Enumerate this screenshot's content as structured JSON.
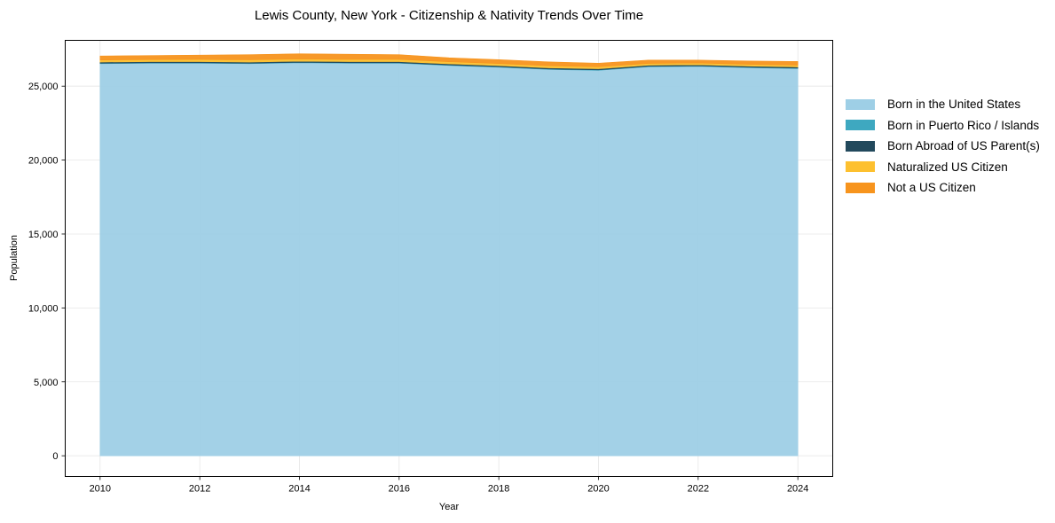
{
  "title": "Lewis County, New York - Citizenship & Nativity Trends Over Time",
  "chart_data": {
    "type": "area",
    "stacked": true,
    "title": "Lewis County, New York - Citizenship & Nativity Trends Over Time",
    "xlabel": "Year",
    "ylabel": "Population",
    "x": [
      2010,
      2011,
      2012,
      2013,
      2014,
      2015,
      2016,
      2017,
      2018,
      2019,
      2020,
      2021,
      2022,
      2023,
      2024
    ],
    "xticks": [
      "2010",
      "2012",
      "2014",
      "2016",
      "2018",
      "2020",
      "2022",
      "2024"
    ],
    "yticks": [
      "0",
      "5,000",
      "10,000",
      "15,000",
      "20,000",
      "25,000"
    ],
    "ylim": [
      -1400,
      28100
    ],
    "xlim": [
      2009.3,
      2024.7
    ],
    "grid": true,
    "legend_position": "right-outside",
    "series": [
      {
        "name": "Born in the United States",
        "color": "#9ecfe6",
        "values": [
          26520,
          26550,
          26550,
          26520,
          26580,
          26550,
          26550,
          26400,
          26280,
          26130,
          26070,
          26310,
          26340,
          26250,
          26190
        ]
      },
      {
        "name": "Born in Puerto Rico / Islands",
        "color": "#3ea8c0",
        "values": [
          30,
          30,
          30,
          30,
          30,
          30,
          30,
          30,
          30,
          30,
          30,
          30,
          30,
          30,
          30
        ]
      },
      {
        "name": "Born Abroad of US Parent(s)",
        "color": "#22495c",
        "values": [
          80,
          80,
          80,
          80,
          80,
          80,
          80,
          80,
          80,
          80,
          80,
          80,
          80,
          80,
          80
        ]
      },
      {
        "name": "Naturalized US Citizen",
        "color": "#fdc02f",
        "values": [
          140,
          140,
          150,
          150,
          150,
          150,
          150,
          140,
          140,
          140,
          130,
          120,
          120,
          120,
          120
        ]
      },
      {
        "name": "Not a US Citizen",
        "color": "#f7941d",
        "values": [
          270,
          270,
          290,
          350,
          350,
          350,
          320,
          270,
          260,
          260,
          240,
          220,
          190,
          220,
          250
        ]
      }
    ]
  },
  "legend": {
    "items": [
      {
        "label": "Born in the United States",
        "color": "#9ecfe6"
      },
      {
        "label": "Born in Puerto Rico / Islands",
        "color": "#3ea8c0"
      },
      {
        "label": "Born Abroad of US Parent(s)",
        "color": "#22495c"
      },
      {
        "label": "Naturalized US Citizen",
        "color": "#fdc02f"
      },
      {
        "label": "Not a US Citizen",
        "color": "#f7941d"
      }
    ]
  }
}
